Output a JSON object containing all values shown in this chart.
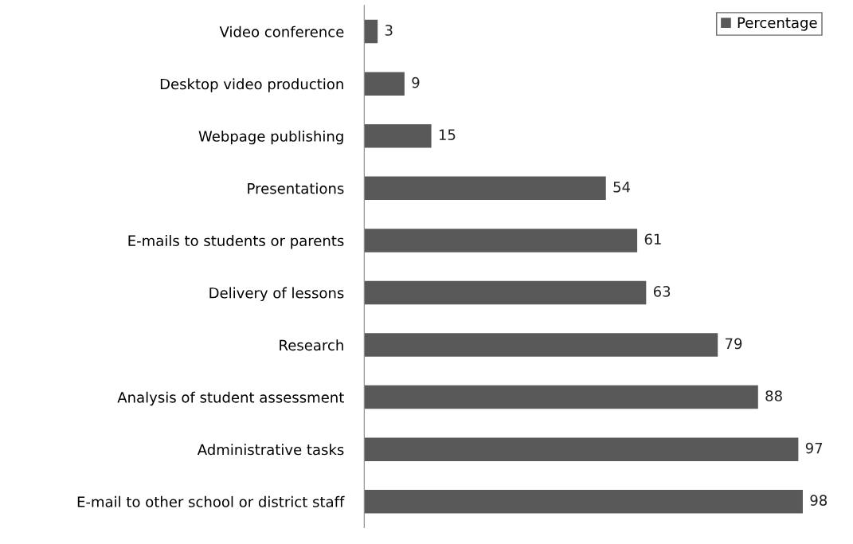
{
  "chart_data": {
    "type": "bar",
    "orientation": "horizontal",
    "categories": [
      "Video conference",
      "Desktop video production",
      "Webpage publishing",
      "Presentations",
      "E-mails to students or parents",
      "Delivery of lessons",
      "Research",
      "Analysis of student assessment",
      "Administrative tasks",
      "E-mail to other school or district staff"
    ],
    "series": [
      {
        "name": "Percentage",
        "color": "#595959",
        "values": [
          3,
          9,
          15,
          54,
          61,
          63,
          79,
          88,
          97,
          98
        ]
      }
    ],
    "data_labels": true,
    "legend": "top right",
    "grid": false
  }
}
